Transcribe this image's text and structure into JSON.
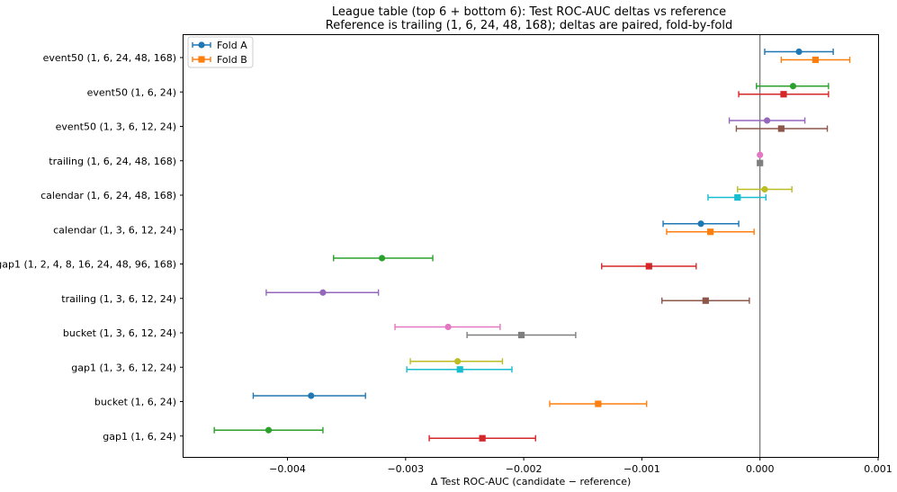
{
  "chart_data": {
    "type": "scatter",
    "title": "League table (top 6 + bottom 6): Test ROC-AUC deltas vs reference",
    "subtitle": "Reference is trailing (1, 6, 24, 48, 168); deltas are paired, fold-by-fold",
    "xlabel": "Δ Test ROC-AUC (candidate − reference)",
    "ylabel": "",
    "xlim": [
      -0.00488,
      0.001
    ],
    "x_ticks": [
      "−0.004",
      "−0.003",
      "−0.002",
      "−0.001",
      "0.000",
      "0.001"
    ],
    "x_tick_values": [
      -0.004,
      -0.003,
      -0.002,
      -0.001,
      0.0,
      0.001
    ],
    "reference_line_x": 0,
    "grid": false,
    "legend": {
      "position": "top-left",
      "entries": [
        "Fold A",
        "Fold B"
      ]
    },
    "categories": [
      "event50 (1, 6, 24, 48, 168)",
      "event50 (1, 6, 24)",
      "event50 (1, 3, 6, 12, 24)",
      "trailing (1, 6, 24, 48, 168)",
      "calendar (1, 6, 24, 48, 168)",
      "calendar (1, 3, 6, 12, 24)",
      "gap1 (1, 2, 4, 8, 16, 24, 48, 96, 168)",
      "trailing (1, 3, 6, 12, 24)",
      "bucket (1, 3, 6, 12, 24)",
      "gap1 (1, 3, 6, 12, 24)",
      "bucket (1, 6, 24)",
      "gap1 (1, 6, 24)"
    ],
    "series": [
      {
        "name": "Fold A",
        "marker": "circle",
        "values": [
          0.00033,
          0.00028,
          6e-05,
          0.0,
          4e-05,
          -0.0005,
          -0.0032,
          -0.0037,
          -0.00264,
          -0.00256,
          -0.0038,
          -0.00416
        ],
        "err_low": [
          4e-05,
          -3e-05,
          -0.00026,
          0.0,
          -0.00019,
          -0.00082,
          -0.00361,
          -0.00418,
          -0.00309,
          -0.00296,
          -0.00429,
          -0.00462
        ],
        "err_high": [
          0.00062,
          0.00058,
          0.00038,
          0.0,
          0.00027,
          -0.00018,
          -0.00277,
          -0.00323,
          -0.0022,
          -0.00218,
          -0.00334,
          -0.0037
        ],
        "colors": [
          "#1f77b4",
          "#2ca02c",
          "#9467bd",
          "#e377c2",
          "#bcbd22",
          "#1f77b4",
          "#2ca02c",
          "#9467bd",
          "#e377c2",
          "#bcbd22",
          "#1f77b4",
          "#2ca02c"
        ]
      },
      {
        "name": "Fold B",
        "marker": "square",
        "values": [
          0.00047,
          0.0002,
          0.00018,
          0.0,
          -0.00019,
          -0.00042,
          -0.00094,
          -0.00046,
          -0.00202,
          -0.00254,
          -0.00137,
          -0.00235
        ],
        "err_low": [
          0.00018,
          -0.00018,
          -0.0002,
          0.0,
          -0.00044,
          -0.00079,
          -0.00134,
          -0.00083,
          -0.00248,
          -0.00299,
          -0.00178,
          -0.0028
        ],
        "err_high": [
          0.00076,
          0.00058,
          0.00057,
          0.0,
          5e-05,
          -5e-05,
          -0.00054,
          -9e-05,
          -0.00156,
          -0.0021,
          -0.00096,
          -0.0019
        ],
        "colors": [
          "#ff7f0e",
          "#d62728",
          "#8c564b",
          "#7f7f7f",
          "#17becf",
          "#ff7f0e",
          "#d62728",
          "#8c564b",
          "#7f7f7f",
          "#17becf",
          "#ff7f0e",
          "#d62728"
        ]
      }
    ],
    "legend_colors": [
      "#1f77b4",
      "#ff7f0e"
    ]
  }
}
